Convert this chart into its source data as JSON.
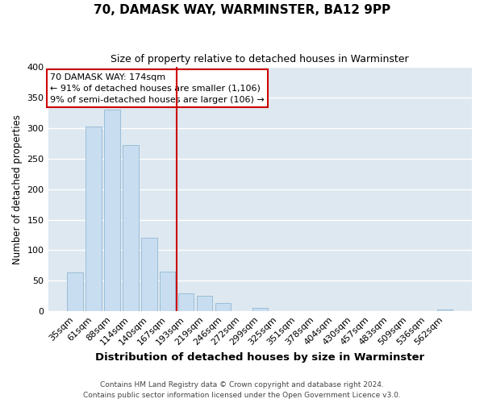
{
  "title": "70, DAMASK WAY, WARMINSTER, BA12 9PP",
  "subtitle": "Size of property relative to detached houses in Warminster",
  "xlabel": "Distribution of detached houses by size in Warminster",
  "ylabel": "Number of detached properties",
  "bar_color": "#c8ddf0",
  "bar_edge_color": "#9bbdd8",
  "categories": [
    "35sqm",
    "61sqm",
    "88sqm",
    "114sqm",
    "140sqm",
    "167sqm",
    "193sqm",
    "219sqm",
    "246sqm",
    "272sqm",
    "299sqm",
    "325sqm",
    "351sqm",
    "378sqm",
    "404sqm",
    "430sqm",
    "457sqm",
    "483sqm",
    "509sqm",
    "536sqm",
    "562sqm"
  ],
  "values": [
    63,
    303,
    330,
    272,
    121,
    65,
    29,
    25,
    13,
    0,
    5,
    0,
    0,
    0,
    0,
    0,
    0,
    0,
    0,
    0,
    3
  ],
  "ylim": [
    0,
    400
  ],
  "yticks": [
    0,
    50,
    100,
    150,
    200,
    250,
    300,
    350,
    400
  ],
  "vline_x_index": 5.5,
  "vline_color": "#cc0000",
  "annotation_title": "70 DAMASK WAY: 174sqm",
  "annotation_line1": "← 91% of detached houses are smaller (1,106)",
  "annotation_line2": "9% of semi-detached houses are larger (106) →",
  "annotation_box_color": "#ffffff",
  "annotation_box_edge": "#cc0000",
  "footer_line1": "Contains HM Land Registry data © Crown copyright and database right 2024.",
  "footer_line2": "Contains public sector information licensed under the Open Government Licence v3.0.",
  "background_color": "#ffffff",
  "plot_background": "#dde8f0",
  "grid_color": "#ffffff"
}
